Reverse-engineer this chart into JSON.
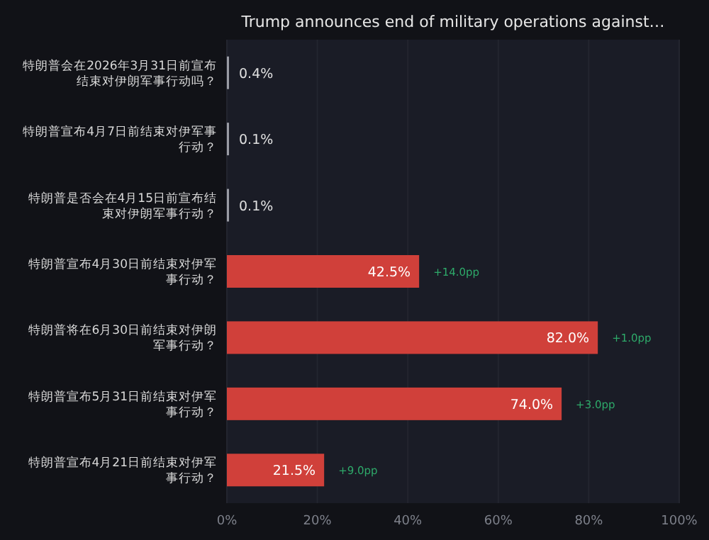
{
  "chart_data": {
    "type": "bar",
    "orientation": "horizontal",
    "title": "Trump announces end of military operations against…",
    "categories": [
      "特朗普会在2026年3月31日前宣布结束对伊朗军事行动吗？",
      "特朗普宣布4月7日前结束对伊军事行动？",
      "特朗普是否会在4月15日前宣布结束对伊朗军事行动？",
      "特朗普宣布4月30日前结束对伊军事行动？",
      "特朗普将在6月30日前结束对伊朗军事行动？",
      "特朗普宣布5月31日前结束对伊军事行动？",
      "特朗普宣布4月21日前结束对伊军事行动？"
    ],
    "values": [
      0.4,
      0.1,
      0.1,
      42.5,
      82.0,
      74.0,
      21.5
    ],
    "value_labels": [
      "0.4%",
      "0.1%",
      "0.1%",
      "42.5%",
      "82.0%",
      "74.0%",
      "21.5%"
    ],
    "colors": [
      "#9a9ca4",
      "#9a9ca4",
      "#9a9ca4",
      "#d0403a",
      "#d0403a",
      "#d0403a",
      "#d0403a"
    ],
    "xlim": [
      0,
      100
    ],
    "xticks": [
      {
        "value": 0,
        "label": "0%"
      },
      {
        "value": 20,
        "label": "20%"
      },
      {
        "value": 40,
        "label": "40%"
      },
      {
        "value": 60,
        "label": "60%"
      },
      {
        "value": 80,
        "label": "80%"
      },
      {
        "value": 100,
        "label": "100%"
      }
    ],
    "grid": "x",
    "annotations": [
      {
        "text": "+14.0pp",
        "x": 42.5,
        "y": "特朗普宣布4月30日前结束对伊军事行动？"
      },
      {
        "text": "+1.0pp",
        "x": 82.0,
        "y": "特朗普将在6月30日前结束对伊朗军事行动？"
      },
      {
        "text": "+3.0pp",
        "x": 74.0,
        "y": "特朗普宣布5月31日前结束对伊军事行动？"
      },
      {
        "text": "+9.0pp",
        "x": 21.5,
        "y": "特朗普宣布4月21日前结束对伊军事行动？"
      }
    ]
  }
}
